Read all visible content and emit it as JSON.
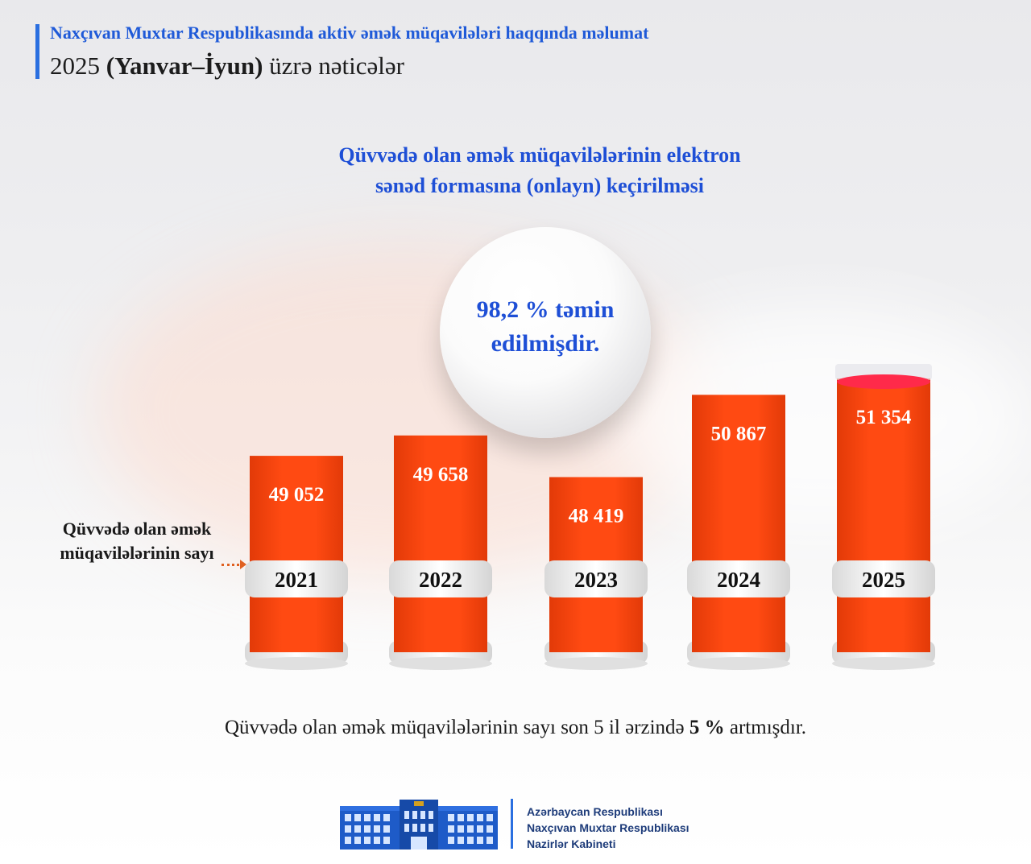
{
  "header": {
    "title": "Naxçıvan Muxtar Respublikasında aktiv əmək müqavilələri haqqında məlumat",
    "subtitle_year": "2025",
    "subtitle_period": "(Yanvar–İyun)",
    "subtitle_rest": "üzrə nəticələr"
  },
  "chart_heading": {
    "line1": "Qüvvədə olan əmək müqavilələrinin elektron",
    "line2": "sənəd  formasına (onlayn) keçirilməsi"
  },
  "bubble": {
    "line1": "98,2 % təmin",
    "line2": "edilmişdir."
  },
  "side_label": "Qüvvədə olan əmək müqavilələrinin sayı",
  "footer_note": {
    "text": "Qüvvədə olan əmək müqavilələrinin sayı son 5 il ərzində",
    "highlight": "5 %",
    "tail": "artmışdır."
  },
  "organization": {
    "line1": "Azərbaycan Respublikası",
    "line2": "Naxçıvan Muxtar Respublikası",
    "line3": "Nazirlər Kabineti"
  },
  "colors": {
    "accent": "#1e4fd6",
    "bar": "#ff4a12",
    "bar_dark": "#e23a08",
    "band": "#f3f3f3"
  },
  "chart_data": {
    "type": "bar",
    "categories": [
      "2021",
      "2022",
      "2023",
      "2024",
      "2025"
    ],
    "values": [
      49052,
      49658,
      48419,
      50867,
      51354
    ],
    "value_labels": [
      "49 052",
      "49 658",
      "48 419",
      "50 867",
      "51 354"
    ],
    "title": "Qüvvədə olan əmək müqavilələrinin elektron sənəd  formasına (onlayn) keçirilməsi",
    "xlabel": "",
    "ylabel": "",
    "grid": false,
    "legend": "none"
  }
}
